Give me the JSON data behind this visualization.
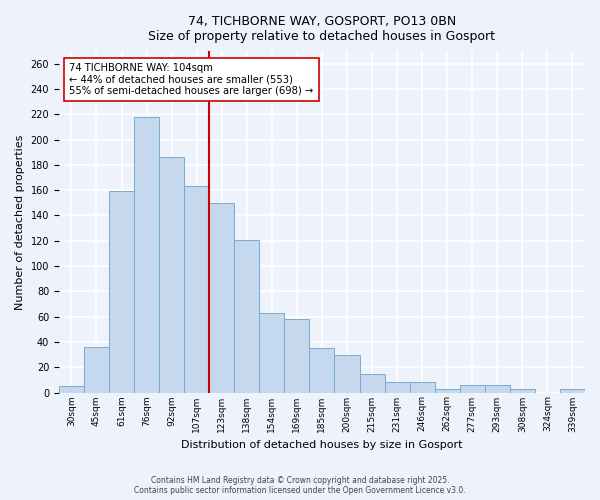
{
  "title": "74, TICHBORNE WAY, GOSPORT, PO13 0BN",
  "subtitle": "Size of property relative to detached houses in Gosport",
  "xlabel": "Distribution of detached houses by size in Gosport",
  "ylabel": "Number of detached properties",
  "categories": [
    "30sqm",
    "45sqm",
    "61sqm",
    "76sqm",
    "92sqm",
    "107sqm",
    "123sqm",
    "138sqm",
    "154sqm",
    "169sqm",
    "185sqm",
    "200sqm",
    "215sqm",
    "231sqm",
    "246sqm",
    "262sqm",
    "277sqm",
    "293sqm",
    "308sqm",
    "324sqm",
    "339sqm"
  ],
  "values": [
    5,
    36,
    159,
    218,
    186,
    163,
    150,
    121,
    63,
    58,
    35,
    30,
    15,
    8,
    8,
    3,
    6,
    6,
    3,
    0,
    3
  ],
  "bar_color": "#c5d8ed",
  "bar_edge_color": "#7aabcf",
  "vline_color": "#cc0000",
  "vline_pos": 5.5,
  "annotation_title": "74 TICHBORNE WAY: 104sqm",
  "annotation_line1": "← 44% of detached houses are smaller (553)",
  "annotation_line2": "55% of semi-detached houses are larger (698) →",
  "annotation_box_color": "#ffffff",
  "annotation_box_edge": "#cc0000",
  "ylim": [
    0,
    270
  ],
  "yticks": [
    0,
    20,
    40,
    60,
    80,
    100,
    120,
    140,
    160,
    180,
    200,
    220,
    240,
    260
  ],
  "background_color": "#eef2fb",
  "grid_color": "#ffffff",
  "footer1": "Contains HM Land Registry data © Crown copyright and database right 2025.",
  "footer2": "Contains public sector information licensed under the Open Government Licence v3.0."
}
